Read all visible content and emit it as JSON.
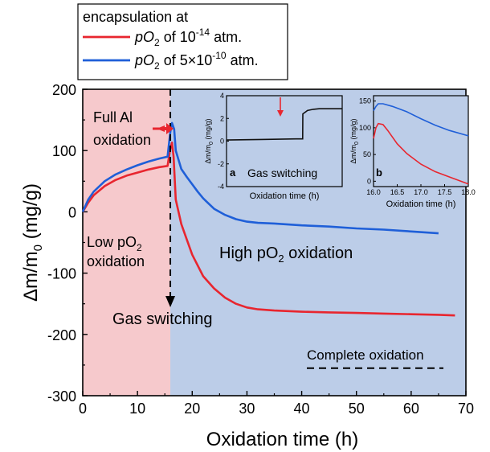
{
  "chart_data": {
    "type": "line",
    "title": "",
    "xlabel": "Oxidation time (h)",
    "ylabel_parts": [
      "Δm/m",
      "0",
      " (mg/g)"
    ],
    "xlim": [
      0,
      70
    ],
    "ylim": [
      -300,
      200
    ],
    "x_ticks": [
      0,
      10,
      20,
      30,
      40,
      50,
      60,
      70
    ],
    "y_ticks": [
      -300,
      -200,
      -100,
      0,
      100,
      200
    ],
    "x_tick_labels": [
      "0",
      "10",
      "20",
      "30",
      "40",
      "50",
      "60",
      "70"
    ],
    "y_tick_labels": [
      "-300",
      "-200",
      "-100",
      "0",
      "100",
      "200"
    ],
    "regions": [
      {
        "name": "low-po2",
        "x_start": 0,
        "x_end": 16,
        "color": "#f6c9cc"
      },
      {
        "name": "high-po2",
        "x_start": 16,
        "x_end": 70,
        "color": "#bccde8"
      }
    ],
    "legend": {
      "placement": "top-left",
      "title": "encapsulation at",
      "entries": [
        {
          "prefix": "pO",
          "sub": "2",
          "mid": " of 10",
          "sup": "-14",
          "suffix": " atm.",
          "color": "#e8262f"
        },
        {
          "prefix": "pO",
          "sub": "2",
          "mid": " of 5×10",
          "sup": "-10",
          "suffix": " atm.",
          "color": "#1f5fd8"
        }
      ]
    },
    "series": [
      {
        "color": "#e8262f",
        "x": [
          0,
          1,
          2,
          4,
          6,
          8,
          10,
          12,
          14,
          15.5,
          16,
          16.3,
          16.6,
          17,
          18,
          19,
          20,
          22,
          24,
          26,
          28,
          30,
          32,
          35,
          40,
          45,
          50,
          55,
          60,
          65,
          68
        ],
        "y": [
          0,
          15,
          27,
          42,
          52,
          59,
          64,
          69,
          73,
          75,
          103,
          113,
          90,
          20,
          -20,
          -45,
          -70,
          -105,
          -125,
          -140,
          -150,
          -156,
          -159,
          -161,
          -163,
          -164,
          -165,
          -166,
          -167,
          -168,
          -169
        ]
      },
      {
        "color": "#1f5fd8",
        "x": [
          0,
          1,
          2,
          4,
          6,
          8,
          10,
          12,
          14,
          15.5,
          16,
          16.3,
          16.7,
          17,
          18,
          19,
          20,
          21,
          22,
          24,
          26,
          28,
          30,
          32,
          35,
          40,
          45,
          50,
          55,
          60,
          65
        ],
        "y": [
          0,
          20,
          33,
          50,
          61,
          69,
          76,
          82,
          87,
          90,
          130,
          145,
          135,
          100,
          70,
          57,
          45,
          33,
          22,
          5,
          -5,
          -12,
          -16,
          -18,
          -19,
          -22,
          -24,
          -27,
          -29,
          -32,
          -35
        ]
      }
    ],
    "annotations": {
      "full_al": [
        "Full Al",
        "oxidation"
      ],
      "low_po2": [
        "Low pO",
        "2",
        "oxidation"
      ],
      "high_po2": [
        "High pO",
        "2",
        " oxidation"
      ],
      "gas_switching": "Gas switching",
      "complete_oxidation": "Complete oxidation",
      "complete_oxidation_y": -255
    },
    "insets": [
      {
        "name": "inset-a",
        "panel_label": "a",
        "annotation": "Gas switching",
        "xlabel": "Oxidation time (h)",
        "ylabel_parts": [
          "Δm/m",
          "0",
          " (mg/g)"
        ],
        "ylim": [
          -4,
          4
        ],
        "y_tick_labels": [
          "-4",
          "-2",
          "0",
          "2",
          "4"
        ],
        "y_ticks": [
          -4,
          -2,
          0,
          2,
          4
        ],
        "series": [
          {
            "color": "#111111",
            "x": [
              0,
              0.3,
              0.6,
              0.658,
              0.66,
              0.7,
              0.75,
              0.8,
              0.9,
              1.0
            ],
            "y": [
              0.1,
              0.15,
              0.2,
              0.2,
              2.4,
              2.7,
              2.8,
              2.85,
              2.85,
              2.85
            ]
          }
        ]
      },
      {
        "name": "inset-b",
        "panel_label": "b",
        "xlabel": "Oxidation time (h)",
        "ylabel_parts": [
          "Δm/m",
          "0",
          " (mg/g)"
        ],
        "xlim": [
          16.0,
          18.0
        ],
        "ylim": [
          -10,
          160
        ],
        "x_ticks": [
          16.0,
          16.5,
          17.0,
          17.5,
          18.0
        ],
        "x_tick_labels": [
          "16.0",
          "16.5",
          "17.0",
          "17.5",
          "18.0"
        ],
        "y_ticks": [
          0,
          50,
          100,
          150
        ],
        "y_tick_labels": [
          "0",
          "50",
          "100",
          "150"
        ],
        "series": [
          {
            "color": "#e8262f",
            "x": [
              16.0,
              16.05,
              16.1,
              16.2,
              16.3,
              16.5,
              16.7,
              17.0,
              17.3,
              17.6,
              18.0
            ],
            "y": [
              80,
              100,
              108,
              106,
              95,
              70,
              52,
              32,
              18,
              8,
              -5
            ]
          },
          {
            "color": "#1f5fd8",
            "x": [
              16.0,
              16.05,
              16.1,
              16.2,
              16.4,
              16.7,
              17.0,
              17.3,
              17.6,
              18.0
            ],
            "y": [
              132,
              140,
              145,
              145,
              140,
              130,
              117,
              105,
              95,
              85
            ]
          }
        ]
      }
    ]
  }
}
